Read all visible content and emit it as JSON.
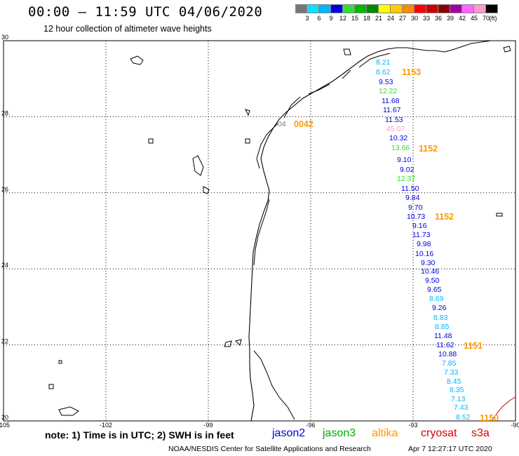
{
  "header": {
    "title": "00:00 – 11:59 UTC 04/06/2020",
    "subtitle": "12 hour collection of altimeter wave heights"
  },
  "colorbar": {
    "colors": [
      "#777777",
      "#00e5ff",
      "#00b4ff",
      "#0000e0",
      "#30e030",
      "#00b800",
      "#008800",
      "#ffff00",
      "#ffcc00",
      "#ff8800",
      "#ff0000",
      "#cc0000",
      "#8b0000",
      "#a000a0",
      "#ff66ff",
      "#ff99cc",
      "#000000"
    ],
    "labels": [
      "3",
      "6",
      "9",
      "12",
      "15",
      "18",
      "21",
      "24",
      "27",
      "30",
      "33",
      "36",
      "39",
      "42",
      "45",
      "70",
      "(ft)"
    ]
  },
  "map": {
    "lat_range": [
      20,
      30
    ],
    "lon_range": [
      -105,
      -90
    ],
    "lat_ticks": [
      "30",
      "28",
      "26",
      "24",
      "22",
      "20"
    ],
    "lon_ticks": [
      "-105",
      "-102",
      "-99",
      "-96",
      "-93",
      "-90"
    ]
  },
  "passes": [
    {
      "label": "1153",
      "color": "#ff9900"
    },
    {
      "label": "0042",
      "color": "#ff9900"
    },
    {
      "label": "1152",
      "color": "#ff9900"
    },
    {
      "label": "1152",
      "color": "#ff9900"
    },
    {
      "label": "1151",
      "color": "#ff9900"
    },
    {
      "label": "1150",
      "color": "#ff9900"
    }
  ],
  "swh_points": [
    {
      "v": "8.21",
      "c": "#00b4ff"
    },
    {
      "v": "8.62",
      "c": "#00b4ff"
    },
    {
      "v": "9.53",
      "c": "#0000e0"
    },
    {
      "v": "12.22",
      "c": "#30e030"
    },
    {
      "v": "11.68",
      "c": "#0000e0"
    },
    {
      "v": "11.67",
      "c": "#0000e0"
    },
    {
      "v": "11.53",
      "c": "#0000e0"
    },
    {
      "v": "45.07",
      "c": "#ff99cc"
    },
    {
      "v": "10.32",
      "c": "#0000e0"
    },
    {
      "v": "13.66",
      "c": "#30e030"
    },
    {
      "v": "9.10",
      "c": "#0000e0"
    },
    {
      "v": "9.02",
      "c": "#0000e0"
    },
    {
      "v": "12.37",
      "c": "#30e030"
    },
    {
      "v": "11.50",
      "c": "#0000e0"
    },
    {
      "v": "9.84",
      "c": "#0000e0"
    },
    {
      "v": "9.70",
      "c": "#0000e0"
    },
    {
      "v": "10.73",
      "c": "#0000e0"
    },
    {
      "v": "9.16",
      "c": "#0000e0"
    },
    {
      "v": "11.73",
      "c": "#0000e0"
    },
    {
      "v": "9.98",
      "c": "#0000e0"
    },
    {
      "v": "10.16",
      "c": "#0000e0"
    },
    {
      "v": "9.30",
      "c": "#0000e0"
    },
    {
      "v": "10.46",
      "c": "#0000e0"
    },
    {
      "v": "9.50",
      "c": "#0000e0"
    },
    {
      "v": "9.65",
      "c": "#0000e0"
    },
    {
      "v": "8.69",
      "c": "#00b4ff"
    },
    {
      "v": "9.26",
      "c": "#0000e0"
    },
    {
      "v": "8.83",
      "c": "#00b4ff"
    },
    {
      "v": "8.85",
      "c": "#00b4ff"
    },
    {
      "v": "11.48",
      "c": "#0000e0"
    },
    {
      "v": "11.62",
      "c": "#0000e0"
    },
    {
      "v": "10.88",
      "c": "#0000e0"
    },
    {
      "v": "7.85",
      "c": "#00b4ff"
    },
    {
      "v": "7.33",
      "c": "#00b4ff"
    },
    {
      "v": "8.45",
      "c": "#00b4ff"
    },
    {
      "v": "8.35",
      "c": "#00b4ff"
    },
    {
      "v": "7.13",
      "c": "#00b4ff"
    },
    {
      "v": "7.43",
      "c": "#00b4ff"
    },
    {
      "v": "8.52",
      "c": "#00b4ff"
    }
  ],
  "partial_point": {
    "v": "04",
    "c": "#777777"
  },
  "footer": {
    "note": "note: 1) Time is in UTC; 2) SWH is in feet",
    "legend": [
      {
        "name": "jason2",
        "color": "#0000e0"
      },
      {
        "name": "jason3",
        "color": "#00aa00"
      },
      {
        "name": "altika",
        "color": "#ff9900"
      },
      {
        "name": "cryosat",
        "color": "#dd0000"
      },
      {
        "name": "s3a",
        "color": "#dd0000"
      }
    ],
    "credit": "NOAA/NESDIS Center for Satellite Applications and Research",
    "generated": "Apr  7 12:27:17 UTC 2020"
  }
}
